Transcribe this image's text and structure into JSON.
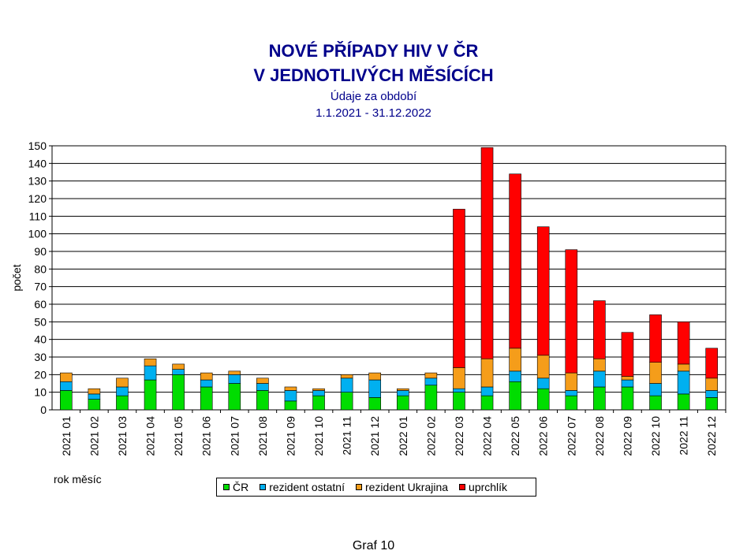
{
  "chart_data": {
    "type": "bar",
    "stacked": true,
    "title": "NOVÉ PŘÍPADY HIV V ČR",
    "title2": "V JEDNOTLIVÝCH MĚSÍCÍCH",
    "subtitle": "Údaje za období",
    "period": "1.1.2021 - 31.12.2022",
    "ylabel": "počet",
    "xlabel": "rok měsíc",
    "ylim": [
      0,
      150
    ],
    "yticks": [
      0,
      10,
      20,
      30,
      40,
      50,
      60,
      70,
      80,
      90,
      100,
      110,
      120,
      130,
      140,
      150
    ],
    "grid": true,
    "legend_position": "bottom",
    "categories": [
      "2021 01",
      "2021 02",
      "2021 03",
      "2021 04",
      "2021 05",
      "2021 06",
      "2021 07",
      "2021 08",
      "2021 09",
      "2021 10",
      "2021 11",
      "2021 12",
      "2022 01",
      "2022 02",
      "2022 03",
      "2022 04",
      "2022 05",
      "2022 06",
      "2022 07",
      "2022 08",
      "2022 09",
      "2022 10",
      "2022 11",
      "2022 12"
    ],
    "series": [
      {
        "name": "ČR",
        "color": "#00dd00",
        "values": [
          11,
          6,
          8,
          17,
          20,
          13,
          15,
          11,
          5,
          8,
          10,
          7,
          8,
          14,
          10,
          8,
          16,
          12,
          8,
          13,
          13,
          8,
          9,
          7
        ]
      },
      {
        "name": "rezident ostatní",
        "color": "#00b0f0",
        "values": [
          5,
          3,
          5,
          8,
          3,
          4,
          5,
          4,
          6,
          3,
          8,
          10,
          3,
          4,
          2,
          5,
          6,
          6,
          3,
          9,
          4,
          7,
          13,
          4
        ]
      },
      {
        "name": "rezident Ukrajina",
        "color": "#f59d1a",
        "values": [
          5,
          3,
          5,
          4,
          3,
          4,
          2,
          3,
          2,
          1,
          2,
          4,
          1,
          3,
          12,
          16,
          13,
          13,
          10,
          7,
          2,
          12,
          4,
          7
        ]
      },
      {
        "name": "uprchlík",
        "color": "#ff0000",
        "values": [
          0,
          0,
          0,
          0,
          0,
          0,
          0,
          0,
          0,
          0,
          0,
          0,
          0,
          0,
          90,
          120,
          99,
          73,
          70,
          33,
          25,
          27,
          24,
          17
        ]
      }
    ]
  },
  "footer": "Graf 10"
}
